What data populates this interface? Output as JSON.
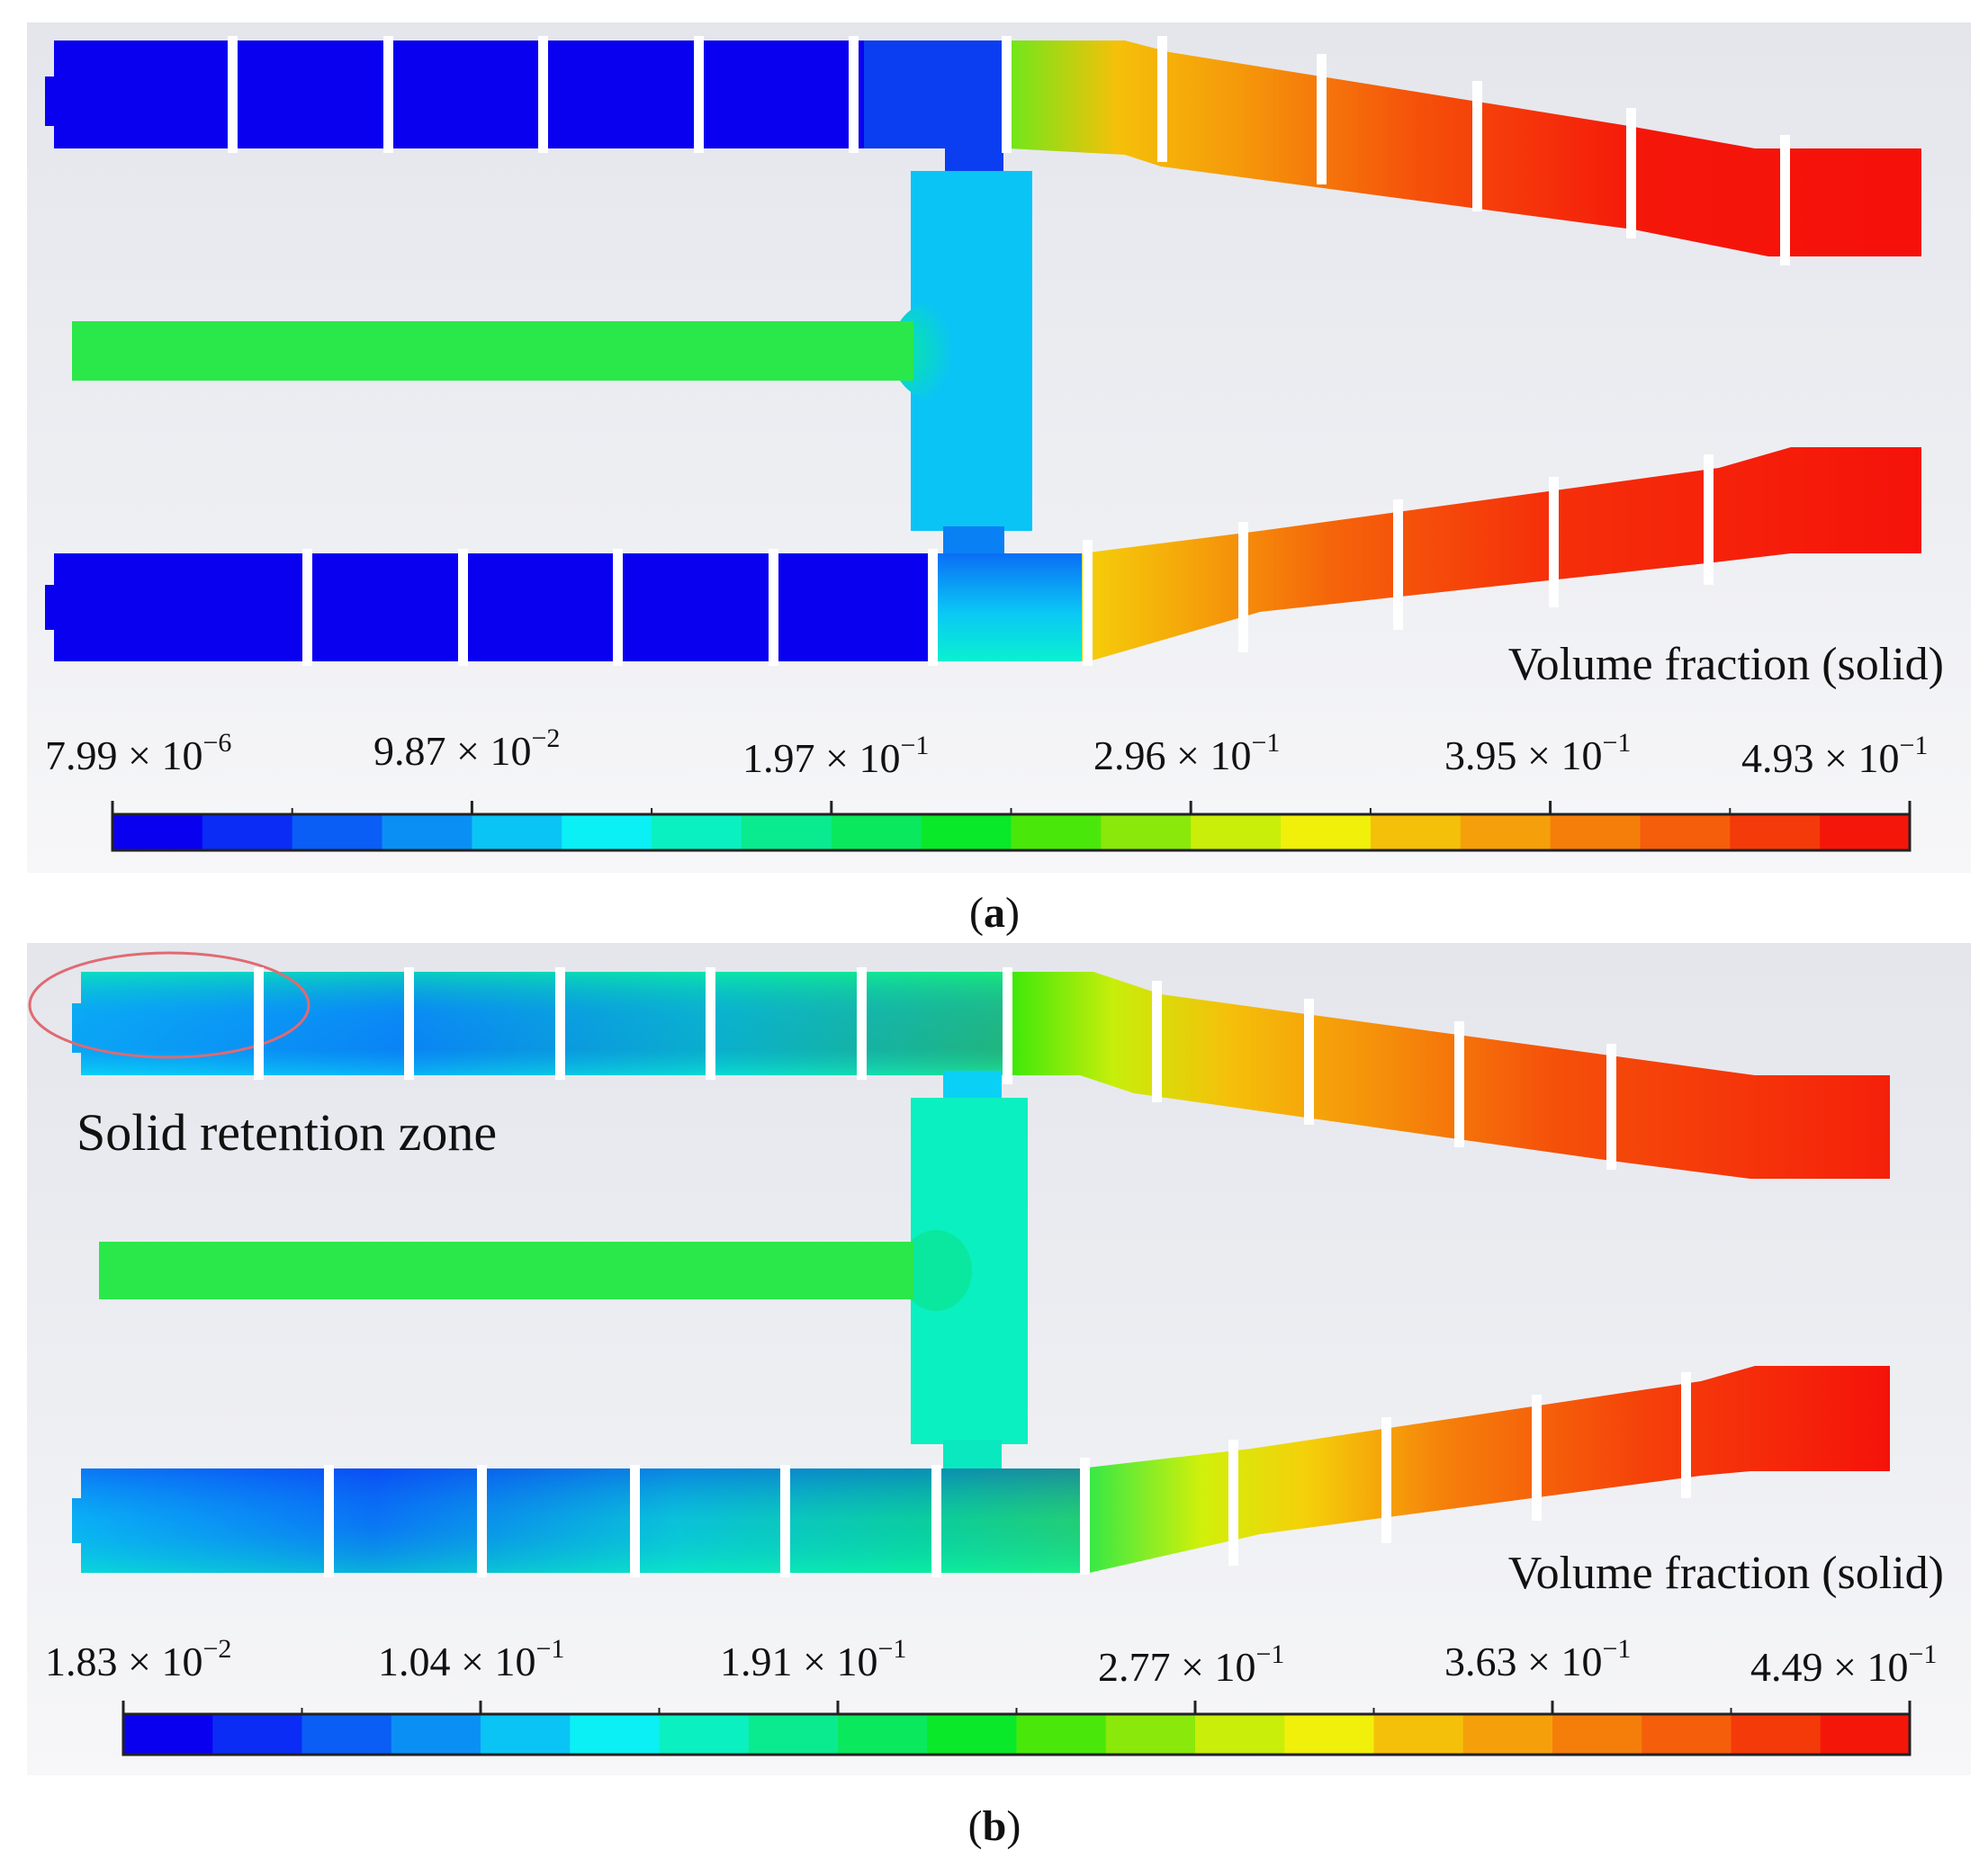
{
  "panels": [
    {
      "id": "a",
      "caption_open": "(",
      "caption_letter": "a",
      "caption_close": ")",
      "legend_title": "Volume fraction (solid)",
      "scale_labels": [
        {
          "mantissa": "7.99",
          "times": " × 10",
          "exponent": "−6"
        },
        {
          "mantissa": "9.87",
          "times": " × 10",
          "exponent": "−2"
        },
        {
          "mantissa": "1.97",
          "times": " × 10",
          "exponent": "−1"
        },
        {
          "mantissa": "2.96",
          "times": " × 10",
          "exponent": "−1"
        },
        {
          "mantissa": "3.95",
          "times": " × 10",
          "exponent": "−1"
        },
        {
          "mantissa": "4.93",
          "times": " × 10",
          "exponent": "−1"
        }
      ],
      "scale_min": 7.99e-06,
      "scale_max": 0.493
    },
    {
      "id": "b",
      "caption_open": "(",
      "caption_letter": "b",
      "caption_close": ")",
      "legend_title": "Volume fraction (solid)",
      "annotation": "Solid retention zone",
      "scale_labels": [
        {
          "mantissa": "1.83",
          "times": " × 10",
          "exponent": "−2"
        },
        {
          "mantissa": "1.04",
          "times": " × 10",
          "exponent": "−1"
        },
        {
          "mantissa": "1.91",
          "times": " × 10",
          "exponent": "−1"
        },
        {
          "mantissa": "2.77",
          "times": " × 10",
          "exponent": "−1"
        },
        {
          "mantissa": "3.63",
          "times": " × 10",
          "exponent": "−1"
        },
        {
          "mantissa": "4.49",
          "times": " × 10",
          "exponent": "−1"
        }
      ],
      "scale_min": 0.0183,
      "scale_max": 0.449
    }
  ],
  "colormap": [
    "#0a00f0",
    "#0a2cf5",
    "#0a5ef5",
    "#0a90f5",
    "#0ac4f5",
    "#0af0f5",
    "#0af0c0",
    "#0aeb90",
    "#0ae85e",
    "#0ae82a",
    "#4ae80a",
    "#8ae80a",
    "#c8ee0a",
    "#f0f00a",
    "#f5c00a",
    "#f5a00a",
    "#f57e0a",
    "#f55e0a",
    "#f53a0a",
    "#f5160a"
  ],
  "colors": {
    "background": "#e6e8ed",
    "legend_outline": "#222222",
    "annotation_ellipse": "#e06a72"
  }
}
